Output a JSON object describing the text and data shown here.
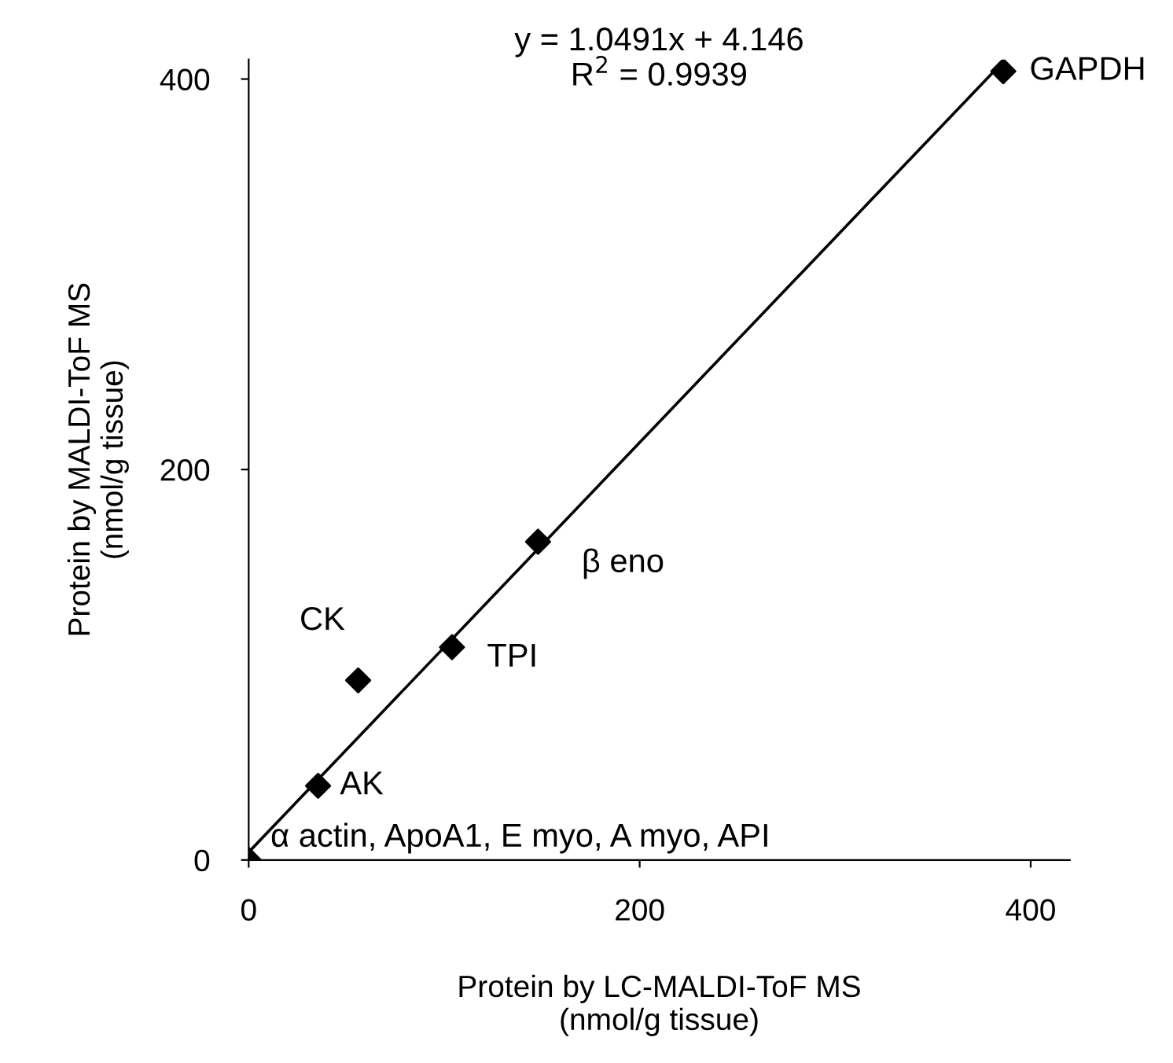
{
  "chart_data": {
    "type": "scatter",
    "xlabel": "Protein by LC-MALDI-ToF MS\n(nmol/g tissue)",
    "ylabel": "Protein by MALDI-ToF MS\n(nmol/g tissue)",
    "xlim": [
      0,
      420
    ],
    "ylim": [
      0,
      410
    ],
    "xticks": [
      0,
      200,
      400
    ],
    "yticks": [
      0,
      200,
      400
    ],
    "grid": false,
    "legend": false,
    "marker": "diamond",
    "series": [
      {
        "color": "#000000",
        "x": [
          0,
          35.5,
          56,
          104,
          148,
          386
        ],
        "values": [
          0,
          38,
          92,
          109,
          163,
          404
        ]
      },
      {
        "type": "line",
        "color": "#000000",
        "marker": "none",
        "x": [
          0,
          386
        ],
        "values": [
          4,
          409
        ]
      }
    ],
    "annotations": [
      {
        "text": "α actin, ApoA1, E myo, A myo, API",
        "x": 0,
        "y": 0
      },
      {
        "text": "AK",
        "x": 35.5,
        "y": 38
      },
      {
        "text": "CK",
        "x": 56,
        "y": 92
      },
      {
        "text": "TPI",
        "x": 104,
        "y": 109
      },
      {
        "text": "β eno",
        "x": 148,
        "y": 163
      },
      {
        "text": "GAPDH",
        "x": 386,
        "y": 404
      },
      "y = 1.0491x + 4.146\nR$^{2}$ = 0.9939"
    ]
  }
}
